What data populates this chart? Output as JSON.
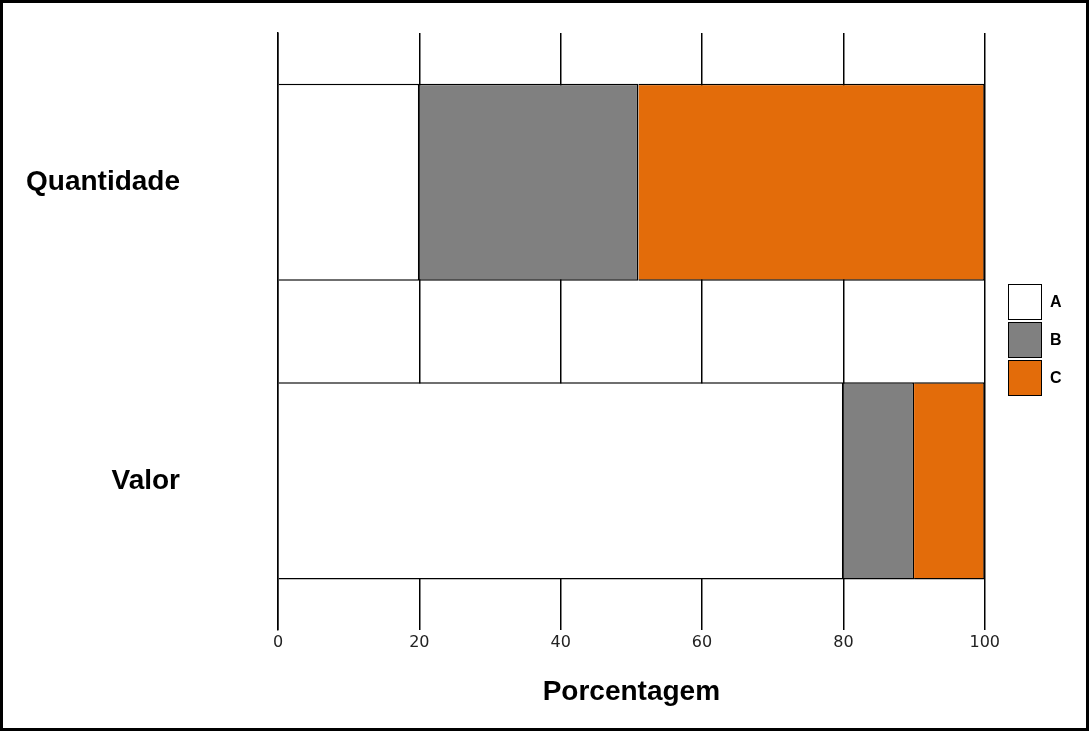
{
  "chart_data": {
    "type": "bar",
    "orientation": "horizontal",
    "stacked": true,
    "categories": [
      "Quantidade",
      "Valor"
    ],
    "series": [
      {
        "name": "A",
        "color": "#ffffff",
        "values": [
          20,
          80
        ]
      },
      {
        "name": "B",
        "color": "#808080",
        "values": [
          31,
          10
        ]
      },
      {
        "name": "C",
        "color": "#e36c0a",
        "values": [
          49,
          10
        ]
      }
    ],
    "xlim": [
      0,
      100
    ],
    "xticks": [
      0,
      20,
      40,
      60,
      80,
      100
    ],
    "xlabel": "Porcentagem",
    "grid": "x",
    "legend": "right"
  }
}
